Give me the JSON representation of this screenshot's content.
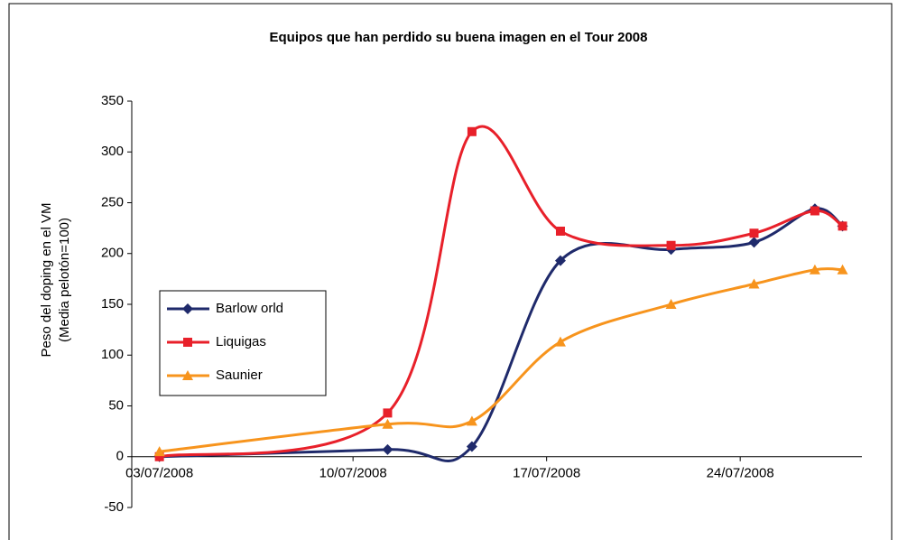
{
  "chart_data": {
    "type": "line",
    "title": "Equipos que han perdido su buena imagen en el Tour 2008",
    "y_label": [
      "Peso del doping en el VM",
      "(Media pelotón=100)"
    ],
    "x": [
      3,
      11.25,
      14.3,
      17.5,
      21.5,
      24.5,
      26.7,
      27.7
    ],
    "xlim": [
      2,
      28.4
    ],
    "xticks": [
      {
        "value": 3,
        "label": "03/07/2008"
      },
      {
        "value": 10,
        "label": "10/07/2008"
      },
      {
        "value": 17,
        "label": "17/07/2008"
      },
      {
        "value": 24,
        "label": "24/07/2008"
      }
    ],
    "ylim": [
      -50,
      350
    ],
    "yticks": [
      -50,
      0,
      50,
      100,
      150,
      200,
      250,
      300,
      350
    ],
    "smooth": true,
    "grid": false,
    "legend": "left",
    "series": [
      {
        "name": "Barlow orld",
        "color": "#1f2a6b",
        "marker": "diamond",
        "values": [
          0,
          7,
          10,
          193,
          204,
          211,
          244,
          227
        ]
      },
      {
        "name": "Liquigas",
        "color": "#e8202a",
        "marker": "square",
        "values": [
          0,
          43,
          320,
          222,
          208,
          220,
          242,
          227
        ]
      },
      {
        "name": "Saunier",
        "color": "#f7941d",
        "marker": "triangle",
        "values": [
          5,
          32,
          35,
          113,
          150,
          170,
          184,
          184
        ]
      }
    ]
  }
}
